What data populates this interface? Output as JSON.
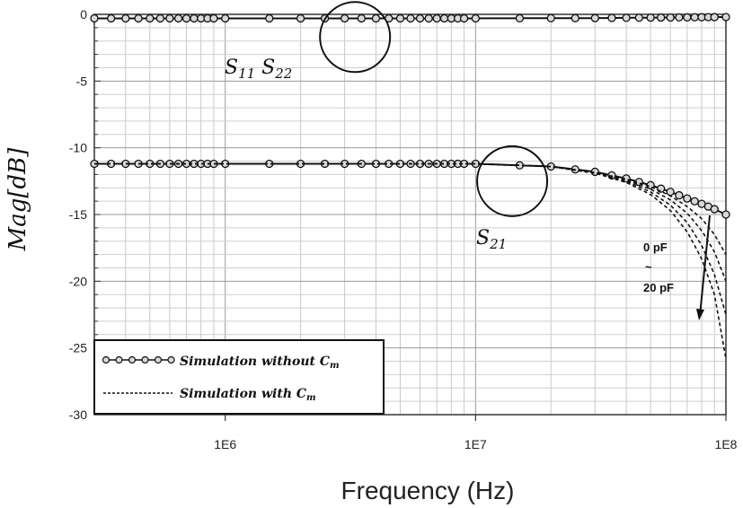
{
  "chart_data": {
    "type": "line",
    "xlabel": "Frequency (Hz)",
    "ylabel": "Mag[dB]",
    "x_scale": "log",
    "xlim": [
      300000,
      100000000
    ],
    "ylim": [
      -30,
      0
    ],
    "x_ticks": [
      {
        "value": 1000000,
        "label": "1E6"
      },
      {
        "value": 10000000,
        "label": "1E7"
      },
      {
        "value": 100000000,
        "label": "1E8"
      }
    ],
    "y_ticks": [
      {
        "value": 0,
        "label": "0"
      },
      {
        "value": -5,
        "label": "-5"
      },
      {
        "value": -10,
        "label": "-10"
      },
      {
        "value": -15,
        "label": "-15"
      },
      {
        "value": -20,
        "label": "-20"
      },
      {
        "value": -25,
        "label": "-25"
      },
      {
        "value": -30,
        "label": "-30"
      }
    ],
    "grid": true,
    "legend_position": "bottom-left",
    "legend": [
      {
        "style": "line-with-circles",
        "text": "Simulation without C",
        "sub": "m"
      },
      {
        "style": "dashed",
        "text": "Simulation with C",
        "sub": "m"
      }
    ],
    "series": [
      {
        "label": "S11 S22",
        "style": "line-with-circles",
        "x": [
          300000,
          1000000,
          3000000,
          10000000,
          30000000,
          100000000
        ],
        "y": [
          -0.3,
          -0.3,
          -0.3,
          -0.3,
          -0.28,
          -0.2
        ]
      },
      {
        "label": "S21",
        "style": "line-with-circles",
        "x": [
          300000,
          1000000,
          3000000,
          10000000,
          20000000,
          30000000,
          40000000,
          50000000,
          60000000,
          70000000,
          80000000,
          90000000,
          100000000
        ],
        "y": [
          -11.2,
          -11.2,
          -11.2,
          -11.2,
          -11.4,
          -11.8,
          -12.3,
          -12.8,
          -13.3,
          -13.8,
          -14.2,
          -14.6,
          -15.0
        ]
      },
      {
        "label": "S21 with Cm",
        "style": "dashed",
        "x": [
          300000,
          10000000,
          20000000,
          30000000,
          40000000,
          50000000,
          60000000,
          70000000,
          80000000,
          90000000,
          100000000
        ],
        "y": [
          -11.2,
          -11.2,
          -11.4,
          -11.9,
          -12.5,
          -13.3,
          -14.3,
          -15.6,
          -17.3,
          -19.5,
          -22.5
        ]
      },
      {
        "label": "S21 with Cm",
        "style": "dashed",
        "x": [
          300000,
          10000000,
          20000000,
          30000000,
          40000000,
          50000000,
          60000000,
          70000000,
          80000000,
          90000000,
          100000000
        ],
        "y": [
          -11.2,
          -11.2,
          -11.4,
          -11.9,
          -12.6,
          -13.5,
          -14.7,
          -16.3,
          -18.3,
          -21.0,
          -25.8
        ]
      },
      {
        "label": "S21 with Cm",
        "style": "dashed",
        "x": [
          300000,
          10000000,
          20000000,
          30000000,
          40000000,
          50000000,
          60000000,
          70000000,
          80000000,
          90000000,
          100000000
        ],
        "y": [
          -11.2,
          -11.2,
          -11.4,
          -11.9,
          -12.4,
          -13.1,
          -13.9,
          -14.9,
          -16.2,
          -17.8,
          -20.0
        ]
      },
      {
        "label": "S21 with Cm",
        "style": "dashed",
        "x": [
          300000,
          10000000,
          20000000,
          30000000,
          40000000,
          50000000,
          60000000,
          70000000,
          80000000,
          90000000,
          100000000
        ],
        "y": [
          -11.2,
          -11.2,
          -11.4,
          -11.85,
          -12.35,
          -12.9,
          -13.6,
          -14.4,
          -15.3,
          -16.5,
          -18.0
        ]
      }
    ],
    "annotations": {
      "s11_s22": {
        "main": "S",
        "sub1": "11",
        "mid": " S",
        "sub2": "22"
      },
      "s21": {
        "main": "S",
        "sub": "21"
      },
      "cap_range": {
        "top": "0 pF",
        "mid": "~",
        "bottom": "20 pF"
      }
    }
  }
}
